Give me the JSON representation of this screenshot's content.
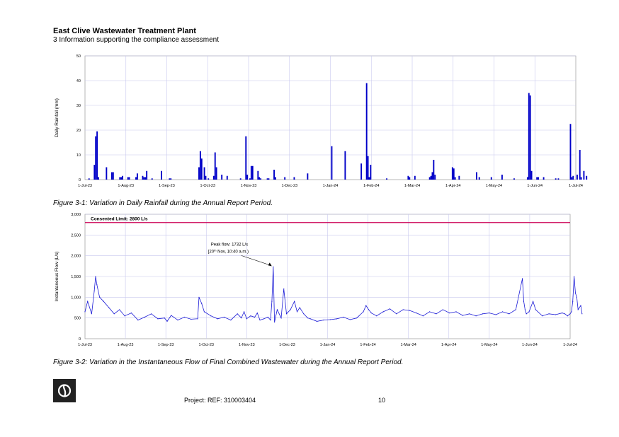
{
  "header": {
    "title": "East Clive Wastewater Treatment Plant",
    "subtitle": "3 Information supporting the compliance assessment"
  },
  "figures": {
    "caption1": "Figure 3-1: Variation in Daily Rainfall during the Annual Report Period.",
    "caption2": "Figure 3-2: Variation in the Instantaneous Flow of Final Combined Wastewater during the Annual Report Period."
  },
  "chart_data": [
    {
      "type": "bar",
      "ylabel": "Daily Rainfall (mm)",
      "ylim": [
        0,
        50
      ],
      "yticks": [
        "0",
        "10",
        "20",
        "30",
        "40",
        "50"
      ],
      "xticks": [
        "1-Jul-23",
        "1-Aug-23",
        "1-Sep-23",
        "1-Oct-23",
        "1-Nov-23",
        "1-Dec-23",
        "1-Jan-24",
        "1-Feb-24",
        "1-Mar-24",
        "1-Apr-24",
        "1-May-24",
        "1-Jun-24",
        "1-Jul-24"
      ],
      "grid": true,
      "series": [
        {
          "color": "#0000c8",
          "x": [
            3,
            7,
            8,
            9,
            10,
            16,
            20,
            21,
            26,
            27,
            28,
            32,
            33,
            38,
            39,
            43,
            44,
            45,
            46,
            50,
            57,
            63,
            64,
            85,
            86,
            87,
            89,
            90,
            92,
            96,
            97,
            98,
            102,
            106,
            116,
            120,
            121,
            123,
            124,
            125,
            129,
            130,
            131,
            136,
            137,
            141,
            142,
            149,
            156,
            166,
            184,
            194,
            206,
            210,
            211,
            212,
            213,
            225,
            241,
            242,
            246,
            257,
            258,
            259,
            260,
            261,
            274,
            275,
            276,
            279,
            292,
            294,
            303,
            311,
            320,
            330,
            331,
            332,
            333,
            337,
            338,
            342,
            351,
            353,
            362,
            363,
            364,
            367,
            369,
            370,
            372,
            374
          ],
          "values": [
            0.5,
            6,
            17.5,
            19.5,
            1,
            5,
            3,
            3,
            1,
            1,
            1.5,
            1,
            1,
            1,
            2.5,
            1.5,
            1,
            1,
            3.5,
            0.5,
            3.5,
            0.5,
            0.5,
            5,
            11.5,
            8.5,
            5,
            1.5,
            0.5,
            1.5,
            11,
            5,
            2,
            1.5,
            0.5,
            17.5,
            2,
            0.5,
            5.5,
            5.5,
            3.5,
            1,
            0.5,
            0.5,
            0.5,
            4,
            1,
            1,
            1,
            2.5,
            13.5,
            11.5,
            6.5,
            39,
            9.5,
            1,
            6,
            0.5,
            1.5,
            1,
            1.5,
            1,
            1.5,
            3,
            8,
            2,
            5,
            4.5,
            1,
            1.5,
            3,
            1,
            1,
            2,
            0.5,
            1,
            35,
            34,
            3.5,
            1,
            1,
            1,
            0.5,
            0.5,
            22.5,
            1,
            1.5,
            2,
            12,
            1,
            3.5,
            1.5
          ]
        }
      ]
    },
    {
      "type": "line",
      "ylabel": "Instantaneous Flow (L/s)",
      "ylim": [
        0,
        3000
      ],
      "yticks": [
        "0",
        "500",
        "1,000",
        "1,500",
        "2,000",
        "2,500",
        "3,000"
      ],
      "xticks": [
        "1-Jul-23",
        "1-Aug-23",
        "1-Sep-23",
        "1-Oct-23",
        "1-Nov-23",
        "1-Dec-23",
        "1-Jan-24",
        "1-Feb-24",
        "1-Mar-24",
        "1-Apr-24",
        "1-May-24",
        "1-Jun-24",
        "1-Jul-24"
      ],
      "grid": true,
      "reference_line": {
        "value": 2800,
        "label": "Consented Limit: 2800 L/s",
        "color": "#cc0055"
      },
      "annotation": {
        "line1": "Peak flow: 1732 L/s",
        "line2_pre": "[20",
        "line2_sup": "th",
        "line2_post": " Nov, 10:40 a.m.)",
        "x": 142,
        "y": 1732
      },
      "series": [
        {
          "color": "#1a1ad6",
          "x": [
            0,
            2,
            5,
            7,
            8,
            9,
            11,
            14,
            18,
            22,
            26,
            30,
            35,
            40,
            45,
            50,
            55,
            60,
            62,
            65,
            70,
            75,
            80,
            85,
            86,
            88,
            90,
            95,
            100,
            105,
            110,
            115,
            118,
            120,
            122,
            125,
            128,
            130,
            132,
            135,
            138,
            140,
            141,
            142,
            143,
            145,
            148,
            150,
            152,
            155,
            158,
            160,
            162,
            165,
            168,
            170,
            175,
            180,
            185,
            190,
            195,
            200,
            205,
            210,
            212,
            214,
            216,
            220,
            225,
            230,
            235,
            240,
            245,
            250,
            255,
            260,
            265,
            270,
            275,
            280,
            285,
            290,
            295,
            300,
            305,
            310,
            315,
            320,
            325,
            330,
            331,
            332,
            333,
            335,
            338,
            340,
            345,
            350,
            355,
            360,
            362,
            364,
            366,
            367,
            368,
            369,
            370,
            371,
            372,
            374,
            375
          ],
          "values": [
            650,
            900,
            600,
            1150,
            1500,
            1300,
            1000,
            900,
            750,
            600,
            700,
            550,
            620,
            450,
            520,
            600,
            480,
            500,
            420,
            560,
            450,
            520,
            470,
            480,
            1000,
            850,
            650,
            550,
            480,
            520,
            450,
            600,
            500,
            650,
            480,
            550,
            520,
            620,
            450,
            480,
            520,
            450,
            900,
            1732,
            400,
            700,
            500,
            1200,
            600,
            700,
            900,
            650,
            750,
            600,
            500,
            480,
            420,
            450,
            460,
            480,
            520,
            460,
            500,
            650,
            800,
            700,
            620,
            550,
            650,
            720,
            600,
            700,
            680,
            620,
            550,
            650,
            600,
            700,
            620,
            650,
            560,
            600,
            550,
            600,
            620,
            580,
            650,
            600,
            700,
            1450,
            900,
            700,
            600,
            650,
            900,
            700,
            550,
            600,
            580,
            620,
            600,
            550,
            600,
            650,
            900,
            1500,
            1100,
            1000,
            700,
            800,
            600
          ]
        }
      ]
    }
  ],
  "footer": {
    "project": "Project: REF: 310003404",
    "page": "10"
  }
}
